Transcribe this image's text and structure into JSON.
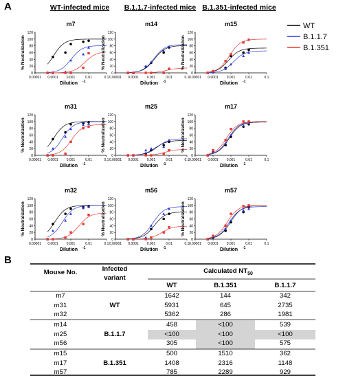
{
  "panel_a_label": "A",
  "panel_b_label": "B",
  "column_titles": [
    "WT-infected mice",
    "B.1.1.7-infected mice",
    "B.1.351-infected mice"
  ],
  "legend": [
    {
      "name": "WT",
      "color": "#000000"
    },
    {
      "name": "B.1.1.7",
      "color": "#2b3bd6"
    },
    {
      "name": "B.1.351",
      "color": "#e53935"
    }
  ],
  "ylabel": "% Neutralization",
  "xlabel": "Dilution",
  "xlabel_sup": "-1",
  "x_ticks": [
    "0.00001",
    "0.0001",
    "0.001",
    "0.01",
    "0.1"
  ],
  "y_ticks": [
    "0",
    "20",
    "40",
    "60",
    "80",
    "100",
    "120"
  ],
  "chart_data": [
    {
      "type": "scatter",
      "title": "m7",
      "xscale": "log",
      "xlim": [
        1e-05,
        0.1
      ],
      "ylim": [
        0,
        120
      ],
      "x": [
        5e-05,
        0.0001,
        0.0005,
        0.001,
        0.005,
        0.01
      ],
      "series": [
        {
          "name": "WT",
          "values": [
            0,
            47,
            60,
            85,
            92,
            95
          ]
        },
        {
          "name": "B.1.1.7",
          "values": [
            0,
            0,
            3,
            37,
            55,
            75
          ]
        },
        {
          "name": "B.1.351",
          "values": [
            0,
            0,
            0,
            0,
            15,
            58
          ]
        }
      ]
    },
    {
      "type": "scatter",
      "title": "m14",
      "xscale": "log",
      "xlim": [
        1e-05,
        0.1
      ],
      "ylim": [
        0,
        120
      ],
      "x": [
        5e-05,
        0.0001,
        0.0005,
        0.001,
        0.005,
        0.01
      ],
      "series": [
        {
          "name": "WT",
          "values": [
            0,
            0,
            18,
            30,
            60,
            75
          ]
        },
        {
          "name": "B.1.1.7",
          "values": [
            0,
            0,
            20,
            32,
            65,
            78
          ]
        },
        {
          "name": "B.1.351",
          "values": [
            0,
            0,
            0,
            0,
            0,
            12
          ]
        }
      ]
    },
    {
      "type": "scatter",
      "title": "m15",
      "xscale": "log",
      "xlim": [
        1e-05,
        0.1
      ],
      "ylim": [
        0,
        120
      ],
      "x": [
        5e-05,
        0.0001,
        0.0005,
        0.001,
        0.005,
        0.01
      ],
      "series": [
        {
          "name": "WT",
          "values": [
            0,
            5,
            15,
            50,
            60,
            68
          ]
        },
        {
          "name": "B.1.1.7",
          "values": [
            0,
            2,
            12,
            25,
            50,
            60
          ]
        },
        {
          "name": "B.1.351",
          "values": [
            0,
            5,
            35,
            55,
            90,
            98
          ]
        }
      ]
    },
    {
      "type": "scatter",
      "title": "m31",
      "xscale": "log",
      "xlim": [
        1e-05,
        0.1
      ],
      "ylim": [
        0,
        120
      ],
      "x": [
        5e-05,
        0.0001,
        0.0005,
        0.001,
        0.005,
        0.01
      ],
      "series": [
        {
          "name": "WT",
          "values": [
            0,
            48,
            68,
            92,
            95,
            98
          ]
        },
        {
          "name": "B.1.1.7",
          "values": [
            0,
            20,
            55,
            78,
            90,
            93
          ]
        },
        {
          "name": "B.1.351",
          "values": [
            0,
            0,
            5,
            40,
            80,
            85
          ]
        }
      ]
    },
    {
      "type": "scatter",
      "title": "m25",
      "xscale": "log",
      "xlim": [
        1e-05,
        0.1
      ],
      "ylim": [
        0,
        120
      ],
      "x": [
        5e-05,
        0.0001,
        0.0005,
        0.001,
        0.005,
        0.01
      ],
      "series": [
        {
          "name": "WT",
          "values": [
            0,
            0,
            5,
            15,
            30,
            40
          ]
        },
        {
          "name": "B.1.1.7",
          "values": [
            0,
            0,
            15,
            20,
            25,
            45
          ]
        },
        {
          "name": "B.1.351",
          "values": [
            0,
            0,
            0,
            0,
            5,
            15
          ]
        }
      ]
    },
    {
      "type": "scatter",
      "title": "m17",
      "xscale": "log",
      "xlim": [
        1e-05,
        0.1
      ],
      "ylim": [
        0,
        120
      ],
      "x": [
        5e-05,
        0.0001,
        0.0005,
        0.001,
        0.005,
        0.01
      ],
      "series": [
        {
          "name": "WT",
          "values": [
            0,
            10,
            30,
            55,
            85,
            92
          ]
        },
        {
          "name": "B.1.1.7",
          "values": [
            0,
            12,
            35,
            60,
            88,
            95
          ]
        },
        {
          "name": "B.1.351",
          "values": [
            0,
            15,
            45,
            78,
            100,
            100
          ]
        }
      ]
    },
    {
      "type": "scatter",
      "title": "m32",
      "xscale": "log",
      "xlim": [
        1e-05,
        0.1
      ],
      "ylim": [
        0,
        120
      ],
      "x": [
        5e-05,
        0.0001,
        0.0005,
        0.001,
        0.005,
        0.01
      ],
      "series": [
        {
          "name": "WT",
          "values": [
            0,
            45,
            75,
            90,
            95,
            98
          ]
        },
        {
          "name": "B.1.1.7",
          "values": [
            0,
            25,
            55,
            75,
            92,
            95
          ]
        },
        {
          "name": "B.1.351",
          "values": [
            0,
            0,
            5,
            20,
            45,
            72
          ]
        }
      ]
    },
    {
      "type": "scatter",
      "title": "m56",
      "xscale": "log",
      "xlim": [
        1e-05,
        0.1
      ],
      "ylim": [
        0,
        120
      ],
      "x": [
        5e-05,
        0.0001,
        0.0005,
        0.001,
        0.005,
        0.01
      ],
      "series": [
        {
          "name": "WT",
          "values": [
            0,
            0,
            2,
            30,
            60,
            75
          ]
        },
        {
          "name": "B.1.1.7",
          "values": [
            0,
            0,
            5,
            40,
            75,
            90
          ]
        },
        {
          "name": "B.1.351",
          "values": [
            0,
            0,
            0,
            5,
            20,
            35
          ]
        }
      ]
    },
    {
      "type": "scatter",
      "title": "m57",
      "xscale": "log",
      "xlim": [
        1e-05,
        0.1
      ],
      "ylim": [
        0,
        120
      ],
      "x": [
        5e-05,
        0.0001,
        0.0005,
        0.001,
        0.005,
        0.01
      ],
      "series": [
        {
          "name": "WT",
          "values": [
            0,
            5,
            25,
            50,
            80,
            95
          ]
        },
        {
          "name": "B.1.1.7",
          "values": [
            0,
            8,
            30,
            55,
            85,
            90
          ]
        },
        {
          "name": "B.1.351",
          "values": [
            0,
            10,
            40,
            75,
            98,
            100
          ]
        }
      ]
    }
  ],
  "table": {
    "header_mouse": "Mouse No.",
    "header_variant_line1": "Infected",
    "header_variant_line2": "variant",
    "header_nt50": "Calculated NT",
    "header_nt50_sub": "50",
    "columns": [
      "WT",
      "B.1.351",
      "B.1.1.7"
    ],
    "groups": [
      {
        "variant": "WT",
        "rows": [
          {
            "mouse": "m7",
            "wt": "1642",
            "b1351": "144",
            "b117": "342"
          },
          {
            "mouse": "m31",
            "wt": "5931",
            "b1351": "645",
            "b117": "2735"
          },
          {
            "mouse": "m32",
            "wt": "5362",
            "b1351": "286",
            "b117": "1981"
          }
        ]
      },
      {
        "variant": "B.1.1.7",
        "rows": [
          {
            "mouse": "m14",
            "wt": "458",
            "b1351": "<100",
            "b117": "539"
          },
          {
            "mouse": "m25",
            "wt": "<100",
            "b1351": "<100",
            "b117": "<100"
          },
          {
            "mouse": "m56",
            "wt": "305",
            "b1351": "<100",
            "b117": "575"
          }
        ]
      },
      {
        "variant": "B.1.351",
        "rows": [
          {
            "mouse": "m15",
            "wt": "500",
            "b1351": "1510",
            "b117": "362"
          },
          {
            "mouse": "m17",
            "wt": "1408",
            "b1351": "2316",
            "b117": "1148"
          },
          {
            "mouse": "m57",
            "wt": "785",
            "b1351": "2289",
            "b117": "929"
          }
        ]
      }
    ]
  }
}
